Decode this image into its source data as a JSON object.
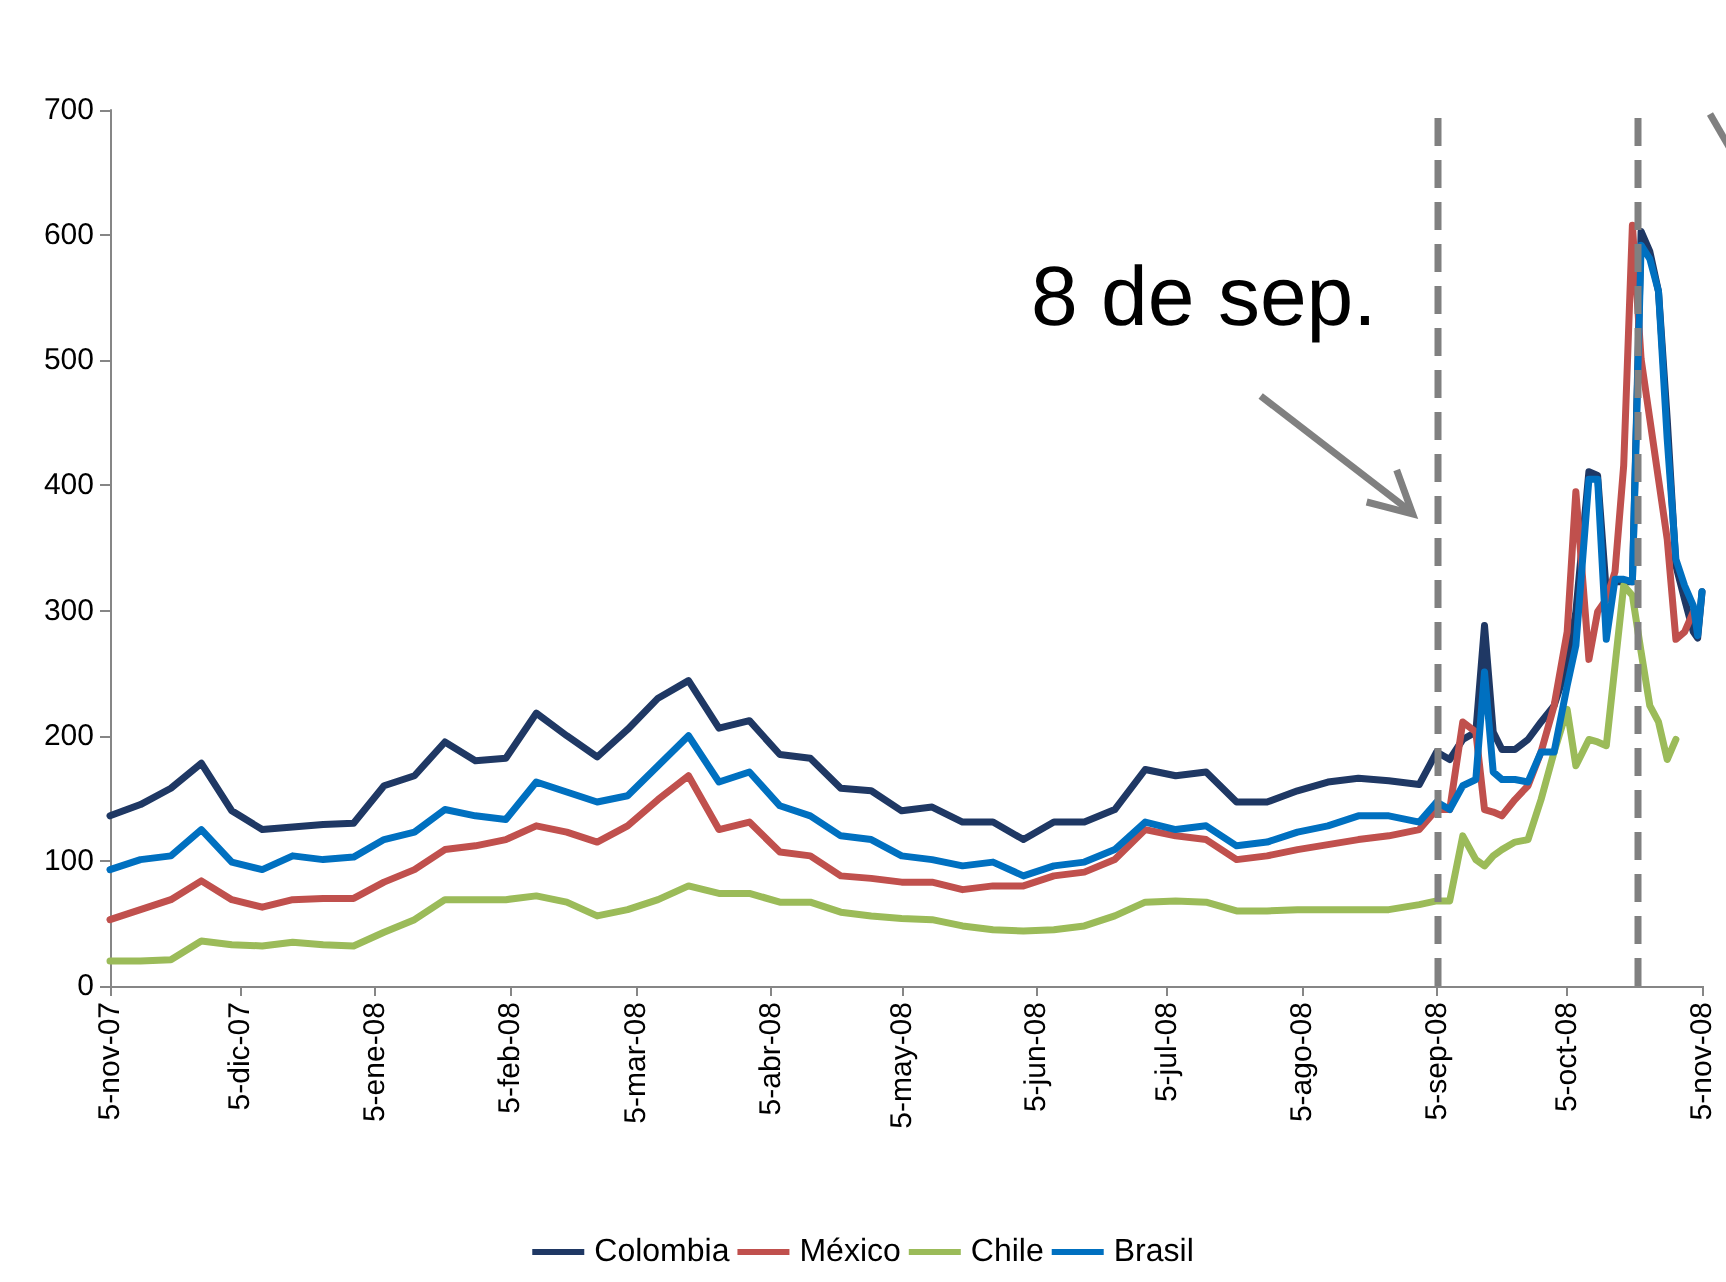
{
  "chart_data": {
    "type": "line",
    "x": [
      "2007-11-05",
      "2007-11-12",
      "2007-11-19",
      "2007-11-26",
      "2007-12-03",
      "2007-12-10",
      "2007-12-17",
      "2007-12-24",
      "2007-12-31",
      "2008-01-07",
      "2008-01-14",
      "2008-01-21",
      "2008-01-28",
      "2008-02-04",
      "2008-02-11",
      "2008-02-18",
      "2008-02-25",
      "2008-03-03",
      "2008-03-10",
      "2008-03-17",
      "2008-03-24",
      "2008-03-31",
      "2008-04-07",
      "2008-04-14",
      "2008-04-21",
      "2008-04-28",
      "2008-05-05",
      "2008-05-12",
      "2008-05-19",
      "2008-05-26",
      "2008-06-02",
      "2008-06-09",
      "2008-06-16",
      "2008-06-23",
      "2008-06-30",
      "2008-07-07",
      "2008-07-14",
      "2008-07-21",
      "2008-07-28",
      "2008-08-04",
      "2008-08-11",
      "2008-08-18",
      "2008-08-25",
      "2008-09-01",
      "2008-09-05",
      "2008-09-08",
      "2008-09-11",
      "2008-09-14",
      "2008-09-16",
      "2008-09-18",
      "2008-09-20",
      "2008-09-23",
      "2008-09-26",
      "2008-09-29",
      "2008-10-02",
      "2008-10-05",
      "2008-10-07",
      "2008-10-10",
      "2008-10-12",
      "2008-10-14",
      "2008-10-16",
      "2008-10-18",
      "2008-10-20",
      "2008-10-22",
      "2008-10-24",
      "2008-10-26",
      "2008-10-28",
      "2008-10-30",
      "2008-11-01",
      "2008-11-03",
      "2008-11-04",
      "2008-11-05"
    ],
    "series": [
      {
        "name": "Colombia",
        "color": "#1f3864",
        "values": [
          136,
          145,
          158,
          178,
          140,
          125,
          127,
          129,
          130,
          160,
          168,
          195,
          180,
          182,
          218,
          200,
          183,
          205,
          230,
          244,
          206,
          212,
          185,
          182,
          158,
          156,
          140,
          143,
          131,
          131,
          117,
          131,
          131,
          141,
          173,
          168,
          171,
          147,
          147,
          156,
          163,
          166,
          164,
          161,
          187,
          181,
          197,
          203,
          288,
          203,
          189,
          189,
          197,
          211,
          224,
          256,
          299,
          411,
          408,
          315,
          323,
          323,
          323,
          603,
          587,
          555,
          453,
          336,
          309,
          283,
          278,
          315
        ]
      },
      {
        "name": "México",
        "color": "#c0504d",
        "values": [
          53,
          61,
          69,
          84,
          69,
          63,
          69,
          70,
          70,
          83,
          93,
          109,
          112,
          117,
          128,
          123,
          115,
          128,
          149,
          168,
          125,
          131,
          107,
          104,
          88,
          86,
          83,
          83,
          77,
          80,
          80,
          88,
          91,
          101,
          125,
          120,
          117,
          101,
          104,
          109,
          113,
          117,
          120,
          125,
          141,
          141,
          211,
          203,
          141,
          139,
          136,
          149,
          160,
          187,
          224,
          283,
          395,
          261,
          299,
          309,
          331,
          416,
          608,
          501,
          453,
          405,
          357,
          277,
          283,
          299,
          null,
          null
        ]
      },
      {
        "name": "Chile",
        "color": "#9bbb59",
        "values": [
          20,
          20,
          21,
          36,
          33,
          32,
          35,
          33,
          32,
          43,
          53,
          69,
          69,
          69,
          72,
          67,
          56,
          61,
          69,
          80,
          74,
          74,
          67,
          67,
          59,
          56,
          54,
          53,
          48,
          45,
          44,
          45,
          48,
          56,
          67,
          68,
          67,
          60,
          60,
          61,
          61,
          61,
          61,
          65,
          68,
          68,
          120,
          101,
          96,
          104,
          109,
          115,
          117,
          149,
          187,
          221,
          176,
          197,
          195,
          192,
          256,
          320,
          312,
          267,
          224,
          211,
          181,
          197,
          null,
          null,
          null,
          null
        ]
      },
      {
        "name": "Brasil",
        "color": "#0070c0",
        "values": [
          93,
          101,
          104,
          125,
          99,
          93,
          104,
          101,
          103,
          117,
          123,
          141,
          136,
          133,
          163,
          155,
          147,
          152,
          176,
          200,
          163,
          171,
          144,
          136,
          120,
          117,
          104,
          101,
          96,
          99,
          88,
          96,
          99,
          109,
          131,
          125,
          128,
          112,
          115,
          123,
          128,
          136,
          136,
          131,
          147,
          141,
          160,
          165,
          251,
          171,
          165,
          165,
          163,
          187,
          187,
          240,
          272,
          405,
          405,
          277,
          325,
          325,
          323,
          592,
          581,
          555,
          437,
          341,
          320,
          304,
          280,
          315
        ]
      }
    ],
    "xlim": [
      "2007-11-05",
      "2008-11-05"
    ],
    "xticks": [
      {
        "value": "2007-11-05",
        "label": "5-nov-07"
      },
      {
        "value": "2007-12-05",
        "label": "5-dic-07"
      },
      {
        "value": "2008-01-05",
        "label": "5-ene-08"
      },
      {
        "value": "2008-02-05",
        "label": "5-feb-08"
      },
      {
        "value": "2008-03-05",
        "label": "5-mar-08"
      },
      {
        "value": "2008-04-05",
        "label": "5-abr-08"
      },
      {
        "value": "2008-05-05",
        "label": "5-may-08"
      },
      {
        "value": "2008-06-05",
        "label": "5-jun-08"
      },
      {
        "value": "2008-07-05",
        "label": "5-jul-08"
      },
      {
        "value": "2008-08-05",
        "label": "5-ago-08"
      },
      {
        "value": "2008-09-05",
        "label": "5-sep-08"
      },
      {
        "value": "2008-10-05",
        "label": "5-oct-08"
      },
      {
        "value": "2008-11-05",
        "label": "5-nov-08"
      }
    ],
    "ylim": [
      0,
      700
    ],
    "yticks": [
      0,
      100,
      200,
      300,
      400,
      500,
      600,
      700
    ],
    "ref_lines": [
      {
        "axis": "x",
        "value": "2008-09-05",
        "label": "8 de sep.",
        "color": "#808080",
        "line_style": "dashed"
      },
      {
        "axis": "x",
        "value": "2008-10-21",
        "color": "#808080",
        "line_style": "dashed"
      }
    ],
    "grid": false,
    "legend": "bottom",
    "marker": "none",
    "line_style": "solid"
  }
}
